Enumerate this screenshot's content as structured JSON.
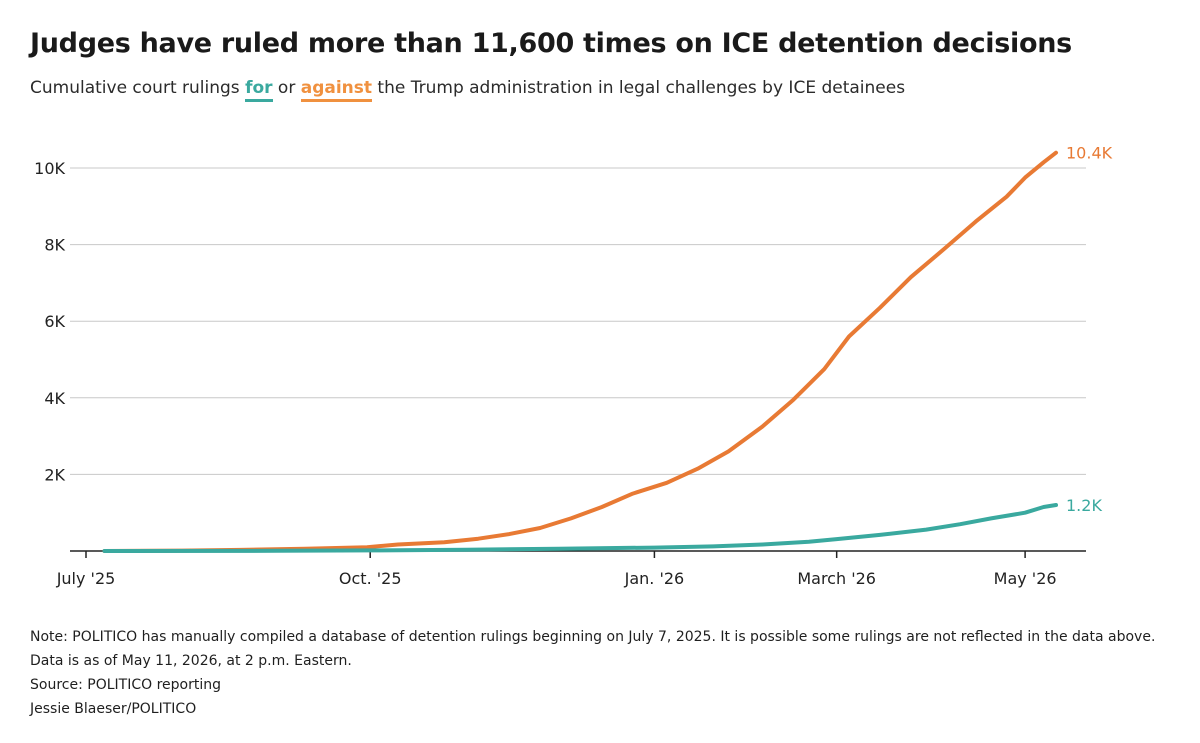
{
  "header": {
    "title": "Judges have ruled more than 11,600 times on ICE detention decisions",
    "subtitle_pre": "Cumulative court rulings ",
    "subtitle_for": "for",
    "subtitle_mid": " or ",
    "subtitle_against": "against",
    "subtitle_post": " the Trump administration in legal challenges by ICE detainees"
  },
  "colors": {
    "for": "#3aa99f",
    "against": "#e87a34",
    "grid": "#c8c8c8",
    "axis": "#222222"
  },
  "chart_data": {
    "type": "line",
    "title": "Judges have ruled more than 11,600 times on ICE detention decisions",
    "subtitle": "Cumulative court rulings for or against the Trump administration in legal challenges by ICE detainees",
    "xlim": [
      "2025-07-01",
      "2026-05-11"
    ],
    "ylim": [
      0,
      10000
    ],
    "y_ticks": [
      {
        "value": 2000,
        "label": "2K"
      },
      {
        "value": 4000,
        "label": "4K"
      },
      {
        "value": 6000,
        "label": "6K"
      },
      {
        "value": 8000,
        "label": "8K"
      },
      {
        "value": 10000,
        "label": "10K"
      }
    ],
    "x_ticks": [
      {
        "date": "2025-07-01",
        "label": "July '25"
      },
      {
        "date": "2025-10-01",
        "label": "Oct. '25"
      },
      {
        "date": "2026-01-01",
        "label": "Jan. '26"
      },
      {
        "date": "2026-03-01",
        "label": "March '26"
      },
      {
        "date": "2026-05-01",
        "label": "May '26"
      }
    ],
    "grid": true,
    "series": [
      {
        "key": "against",
        "end_label": "10.4K",
        "points": [
          [
            "2025-07-07",
            0
          ],
          [
            "2025-08-01",
            10
          ],
          [
            "2025-08-20",
            30
          ],
          [
            "2025-09-10",
            60
          ],
          [
            "2025-09-30",
            100
          ],
          [
            "2025-10-10",
            170
          ],
          [
            "2025-10-25",
            230
          ],
          [
            "2025-11-05",
            320
          ],
          [
            "2025-11-15",
            440
          ],
          [
            "2025-11-25",
            600
          ],
          [
            "2025-12-05",
            850
          ],
          [
            "2025-12-15",
            1150
          ],
          [
            "2025-12-25",
            1500
          ],
          [
            "2026-01-05",
            1780
          ],
          [
            "2026-01-15",
            2150
          ],
          [
            "2026-01-25",
            2600
          ],
          [
            "2026-02-05",
            3250
          ],
          [
            "2026-02-15",
            3950
          ],
          [
            "2026-02-25",
            4750
          ],
          [
            "2026-03-05",
            5600
          ],
          [
            "2026-03-15",
            6350
          ],
          [
            "2026-03-25",
            7150
          ],
          [
            "2026-04-05",
            7900
          ],
          [
            "2026-04-15",
            8600
          ],
          [
            "2026-04-25",
            9250
          ],
          [
            "2026-05-01",
            9750
          ],
          [
            "2026-05-07",
            10150
          ],
          [
            "2026-05-11",
            10400
          ]
        ]
      },
      {
        "key": "for",
        "end_label": "1.2K",
        "points": [
          [
            "2025-07-07",
            0
          ],
          [
            "2025-09-01",
            5
          ],
          [
            "2025-10-01",
            15
          ],
          [
            "2025-11-01",
            35
          ],
          [
            "2025-12-01",
            60
          ],
          [
            "2026-01-01",
            90
          ],
          [
            "2026-01-20",
            120
          ],
          [
            "2026-02-05",
            170
          ],
          [
            "2026-02-20",
            240
          ],
          [
            "2026-03-01",
            310
          ],
          [
            "2026-03-15",
            420
          ],
          [
            "2026-03-30",
            560
          ],
          [
            "2026-04-10",
            700
          ],
          [
            "2026-04-20",
            850
          ],
          [
            "2026-05-01",
            1000
          ],
          [
            "2026-05-07",
            1150
          ],
          [
            "2026-05-11",
            1200
          ]
        ]
      }
    ]
  },
  "footer": {
    "note": "Note: POLITICO has manually compiled a database of detention rulings beginning on July 7, 2025. It is possible some rulings are not reflected in the data above. Data is as of May 11, 2026, at 2 p.m. Eastern.",
    "source": "Source: POLITICO reporting",
    "credit": "Jessie Blaeser/POLITICO"
  }
}
